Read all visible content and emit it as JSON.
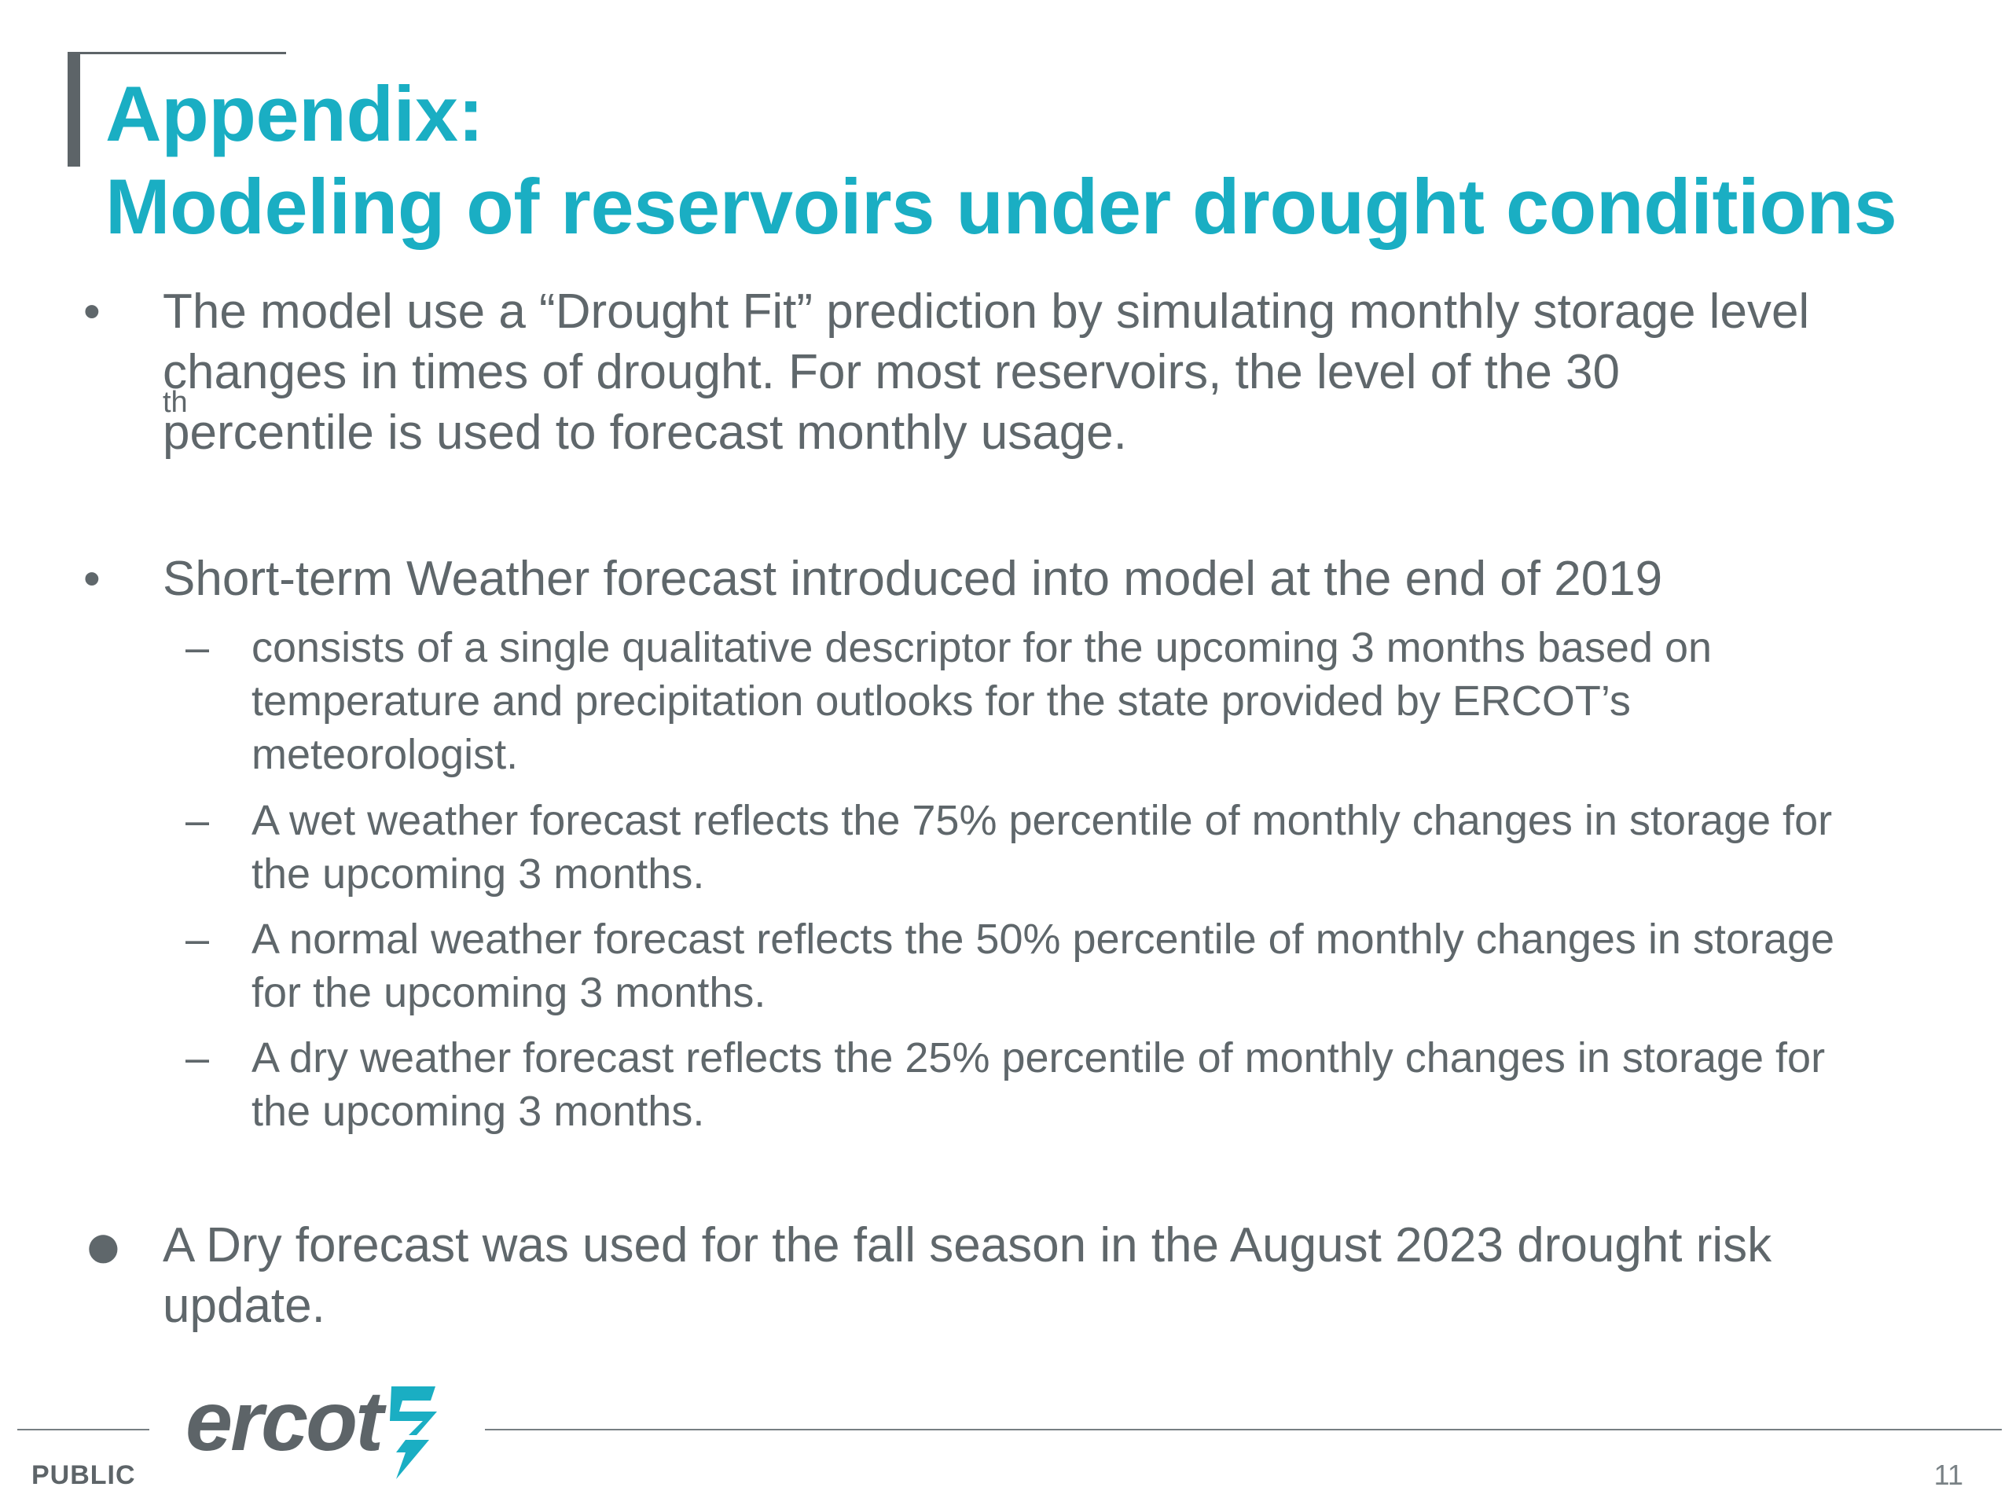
{
  "title": {
    "line1": "Appendix:",
    "line2": "Modeling of reservoirs under drought conditions"
  },
  "bullets": [
    {
      "marker": "•",
      "lines": [
        "The model use a “Drought Fit” prediction by simulating monthly storage level",
        "changes in times of drought. For most reservoirs, the level of the 30",
        "percentile is used to forecast monthly usage."
      ],
      "superscript": "th"
    },
    {
      "marker": "•",
      "lines": [
        "Short-term Weather forecast introduced into model at the end of 2019"
      ],
      "subitems": [
        {
          "marker": "–",
          "lines": [
            "consists of a single qualitative descriptor for the upcoming 3 months based on",
            "temperature and precipitation outlooks for the state provided by ERCOT’s",
            "meteorologist."
          ]
        },
        {
          "marker": "–",
          "lines": [
            "A wet weather forecast reflects the 75% percentile of monthly changes in storage for",
            "the upcoming 3 months."
          ]
        },
        {
          "marker": "–",
          "lines": [
            "A normal weather forecast reflects the 50% percentile of monthly changes in storage",
            "for the upcoming 3 months."
          ]
        },
        {
          "marker": "–",
          "lines": [
            "A dry weather forecast reflects the 25% percentile of monthly changes in storage for",
            "the upcoming 3 months."
          ]
        }
      ]
    },
    {
      "marker": "●",
      "lines": [
        "A Dry forecast was used for the fall season in the August 2023 drought risk",
        "update."
      ]
    }
  ],
  "footer": {
    "logo_text": "ercot",
    "classification": "PUBLIC",
    "page_number": "11"
  },
  "colors": {
    "title": "#1aaec3",
    "body_text": "#5f676b",
    "accent_gray": "#5d6468"
  }
}
